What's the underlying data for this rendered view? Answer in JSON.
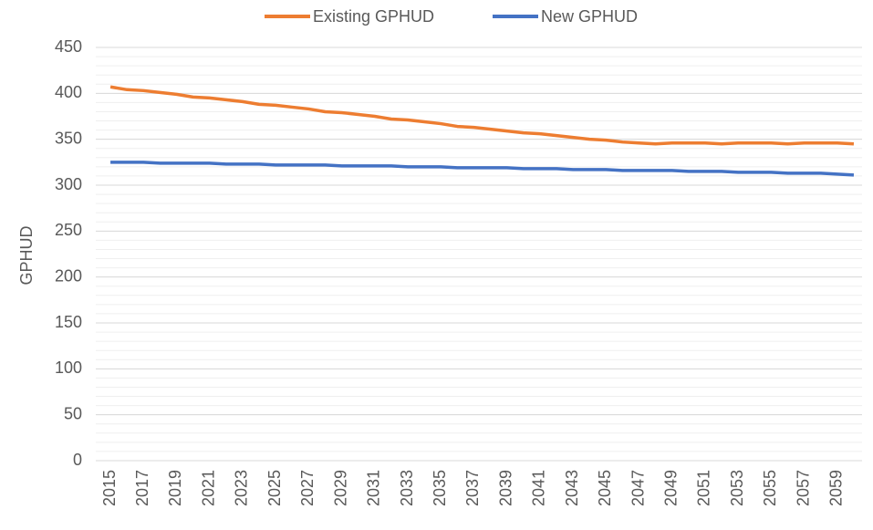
{
  "chart_data": {
    "type": "line",
    "y_label": "GPHUD",
    "categories": [
      "2015",
      null,
      "2017",
      null,
      "2019",
      null,
      "2021",
      null,
      "2023",
      null,
      "2025",
      null,
      "2027",
      null,
      "2029",
      null,
      "2031",
      null,
      "2033",
      null,
      "2035",
      null,
      "2037",
      null,
      "2039",
      null,
      "2041",
      null,
      "2043",
      null,
      "2045",
      null,
      "2047",
      null,
      "2049",
      null,
      "2051",
      null,
      "2053",
      null,
      "2055",
      null,
      "2057",
      null,
      "2059",
      null
    ],
    "series": [
      {
        "name": "Existing GPHUD",
        "color": "#ed7d31",
        "values": [
          407,
          404,
          403,
          401,
          399,
          396,
          395,
          393,
          391,
          388,
          387,
          385,
          383,
          380,
          379,
          377,
          375,
          372,
          371,
          369,
          367,
          364,
          363,
          361,
          359,
          357,
          356,
          354,
          352,
          350,
          349,
          347,
          346,
          345,
          346,
          346,
          346,
          345,
          346,
          346,
          346,
          345,
          346,
          346,
          346,
          345
        ]
      },
      {
        "name": "New GPHUD",
        "color": "#4472c4",
        "values": [
          325,
          325,
          325,
          324,
          324,
          324,
          324,
          323,
          323,
          323,
          322,
          322,
          322,
          322,
          321,
          321,
          321,
          321,
          320,
          320,
          320,
          319,
          319,
          319,
          319,
          318,
          318,
          318,
          317,
          317,
          317,
          316,
          316,
          316,
          316,
          315,
          315,
          315,
          314,
          314,
          314,
          313,
          313,
          313,
          312,
          311
        ]
      }
    ],
    "ylim": [
      0,
      450
    ],
    "yticks": [
      0,
      50,
      100,
      150,
      200,
      250,
      300,
      350,
      400,
      450
    ],
    "grid": true,
    "minor_grid_step": 10,
    "legend": "top"
  }
}
